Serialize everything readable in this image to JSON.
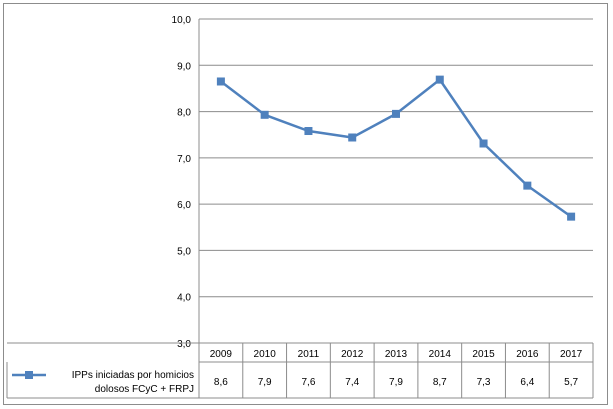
{
  "chart_data": {
    "type": "line",
    "categories": [
      "2009",
      "2010",
      "2011",
      "2012",
      "2013",
      "2014",
      "2015",
      "2016",
      "2017"
    ],
    "series": [
      {
        "name": "IPPs iniciadas por homicios dolosos FCyC + FRPJ",
        "values": [
          8.65,
          7.93,
          7.58,
          7.44,
          7.95,
          8.69,
          7.31,
          6.4,
          5.73
        ],
        "labels": [
          "8,6",
          "7,9",
          "7,6",
          "7,4",
          "7,9",
          "8,7",
          "7,3",
          "6,4",
          "5,7"
        ],
        "color": "#4f81bd"
      }
    ],
    "y_ticks": [
      "3,0",
      "4,0",
      "5,0",
      "6,0",
      "7,0",
      "8,0",
      "9,0",
      "10,0"
    ],
    "ylim": [
      3,
      10
    ],
    "grid": true,
    "legend": "data-table-left",
    "title": "",
    "xlabel": "",
    "ylabel": ""
  }
}
